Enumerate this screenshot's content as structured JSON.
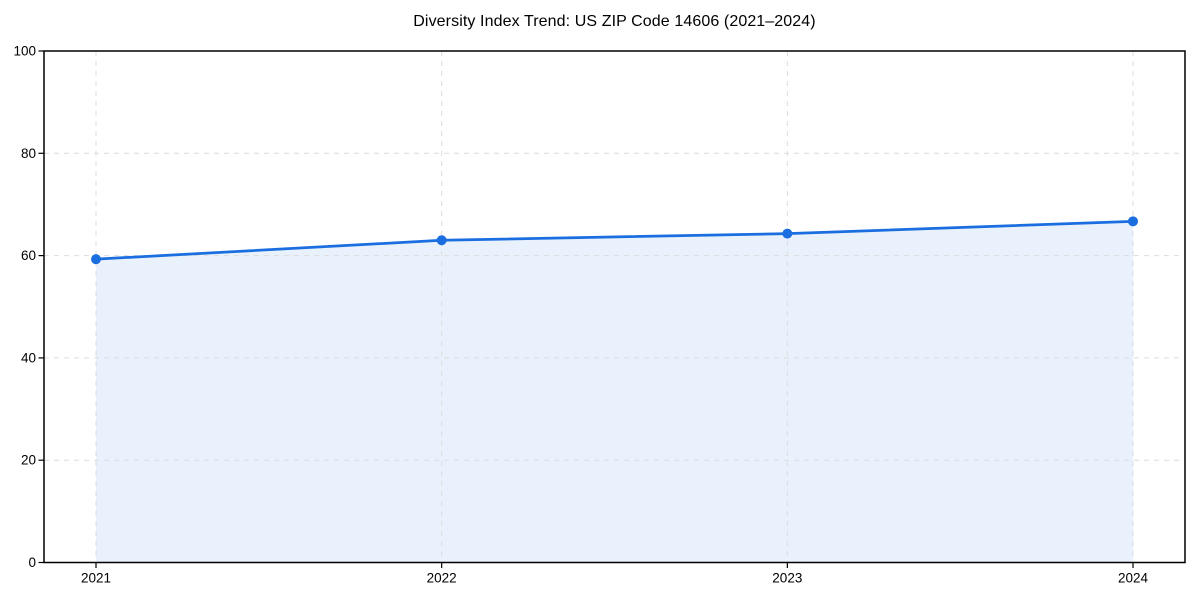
{
  "figure": {
    "background": "#ffffff"
  },
  "chart_data": {
    "type": "line",
    "title": "Diversity Index Trend: US ZIP Code 14606 (2021–2024)",
    "categories": [
      "2021",
      "2022",
      "2023",
      "2024"
    ],
    "x": [
      2021,
      2022,
      2023,
      2024
    ],
    "series": [
      {
        "name": "Diversity Index",
        "values": [
          59.3,
          63.0,
          64.3,
          66.7
        ]
      }
    ],
    "xlabel": "",
    "ylabel": "",
    "ylim": [
      0,
      100
    ],
    "yticks": [
      0,
      20,
      40,
      60,
      80,
      100
    ],
    "grid": true,
    "grid_linestyle": "dashed",
    "legend_position": "none",
    "marker": "circle",
    "area_fill": true,
    "colors": {
      "line": "#1b6ee0",
      "marker": "#1b6ee0",
      "area": "#e9f1fc",
      "grid": "#dcdcdc",
      "axis": "#000000",
      "tick_label": "#000000",
      "title": "#000000",
      "background": "#ffffff"
    }
  }
}
